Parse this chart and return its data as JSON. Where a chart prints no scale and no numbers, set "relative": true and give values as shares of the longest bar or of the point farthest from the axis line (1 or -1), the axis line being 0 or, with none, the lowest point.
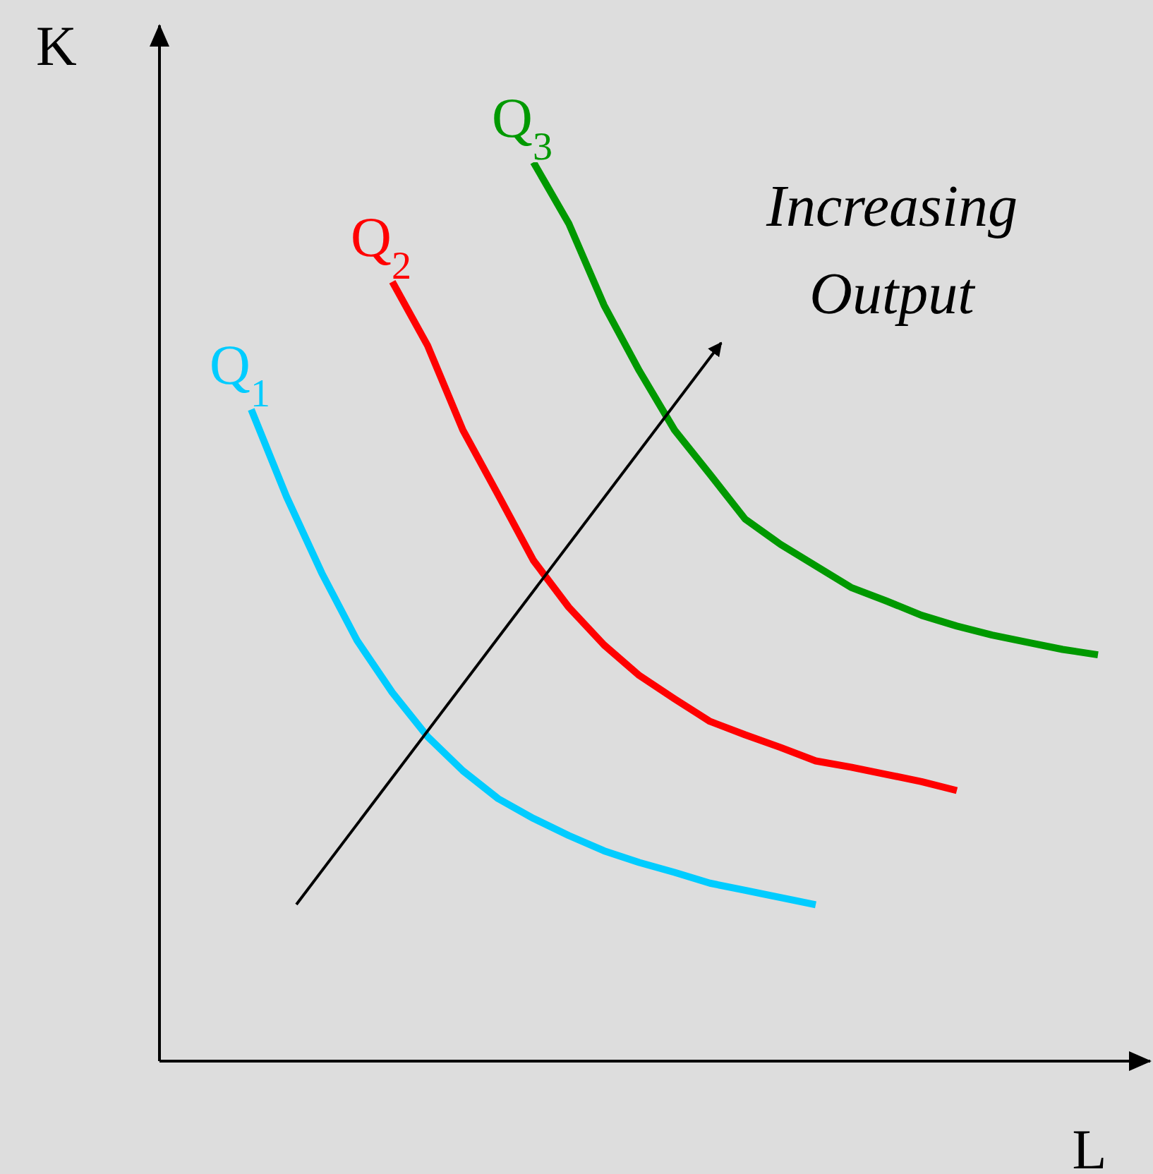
{
  "chart_data": {
    "type": "line",
    "relative": true,
    "xlabel": "L",
    "ylabel": "K",
    "annotations": [
      "Increasing Output"
    ],
    "categories": [
      null,
      null,
      null,
      null,
      null,
      null,
      null,
      null,
      null,
      null,
      null,
      null,
      null,
      null,
      null,
      null,
      null,
      null,
      null,
      null,
      null,
      null,
      null,
      null,
      null,
      null,
      null,
      null,
      null
    ],
    "series": [
      {
        "name": "Q$_{1}$",
        "color": "#00ccff",
        "values": [
          null,
          null,
          null,
          null,
          0.725,
          0.628,
          0.543,
          0.468,
          0.41,
          0.361,
          0.323,
          0.292,
          0.27,
          0.251,
          0.234,
          0.221,
          0.21,
          0.198,
          0.19,
          0.182,
          0.174,
          null,
          null,
          null,
          null,
          null,
          null,
          null,
          null
        ]
      },
      {
        "name": "Q$_{2}$",
        "color": "#ff0000",
        "values": [
          null,
          null,
          null,
          null,
          null,
          null,
          null,
          null,
          0.867,
          0.796,
          0.702,
          0.63,
          0.557,
          0.505,
          0.463,
          0.429,
          0.403,
          0.378,
          0.363,
          0.349,
          0.334,
          0.327,
          0.319,
          0.311,
          0.301,
          null,
          null,
          null,
          null
        ]
      },
      {
        "name": "Q$_{3}$",
        "color": "#009900",
        "values": [
          null,
          null,
          null,
          null,
          null,
          null,
          null,
          null,
          null,
          null,
          null,
          null,
          1,
          0.932,
          0.841,
          0.768,
          0.702,
          0.653,
          0.603,
          0.575,
          0.551,
          0.527,
          0.512,
          0.496,
          0.484,
          0.474,
          0.466,
          0.458,
          0.452
        ]
      }
    ]
  }
}
